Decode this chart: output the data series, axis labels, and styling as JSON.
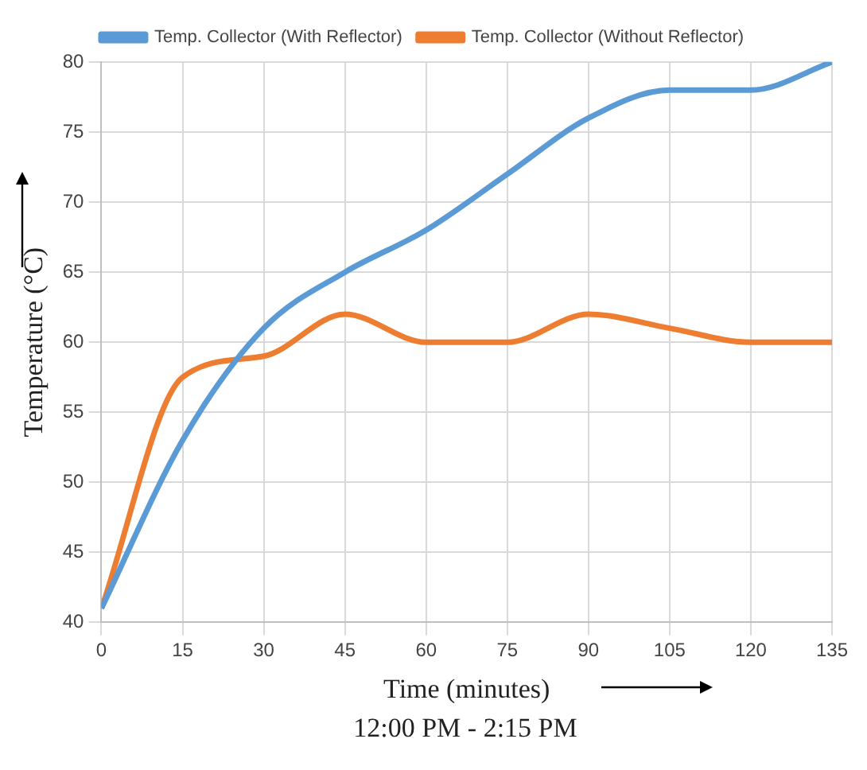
{
  "chart_data": {
    "type": "line",
    "xlabel": "Time (minutes)",
    "ylabel": "Temperature (°C)",
    "annotations": [
      "12:00 PM - 2:15 PM"
    ],
    "x": [
      0,
      15,
      30,
      45,
      60,
      75,
      90,
      105,
      120,
      135
    ],
    "series": [
      {
        "name": "Temp. Collector (With Reflector)",
        "color": "#5b9bd5",
        "values": [
          41,
          53,
          61,
          65,
          68,
          72,
          76,
          78,
          78,
          80
        ]
      },
      {
        "name": "Temp. Collector (Without Reflector)",
        "color": "#ed7d31",
        "values": [
          41,
          57.5,
          59,
          62,
          60,
          60,
          62,
          61,
          60,
          60
        ]
      }
    ],
    "xlim": [
      0,
      135
    ],
    "xticks": [
      0,
      15,
      30,
      45,
      60,
      75,
      90,
      105,
      120,
      135
    ],
    "ylim": [
      40,
      80
    ],
    "yticks": [
      40,
      45,
      50,
      55,
      60,
      65,
      70,
      75,
      80
    ],
    "grid": true,
    "legend": "top",
    "marker": "none",
    "line_style": "solid"
  }
}
